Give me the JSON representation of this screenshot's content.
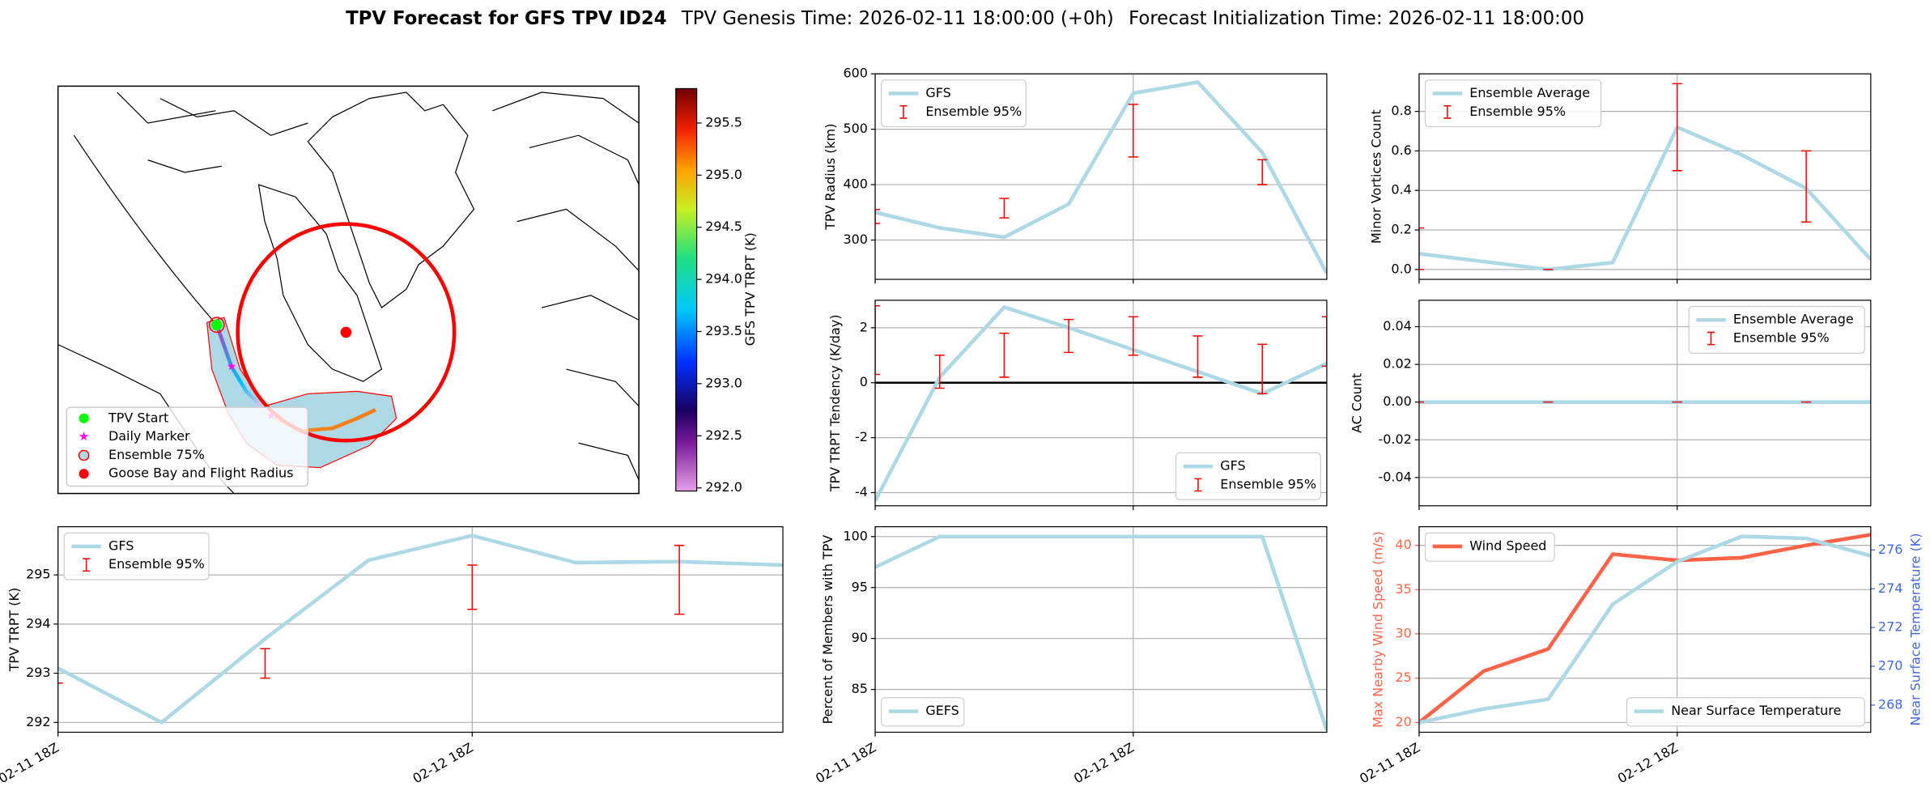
{
  "figure_title": [
    "TPV Forecast for GFS TPV ID24",
    "TPV Genesis Time: 2026-02-11 18:00:00 (+0h)",
    "Forecast Initialization Time: 2026-02-11 18:00:00"
  ],
  "chart_data": [
    {
      "type": "map",
      "legend": [
        {
          "name": "TPV Start",
          "color": "#00ff00"
        },
        {
          "name": "Daily Marker",
          "color": "#ff00ff"
        },
        {
          "name": "Ensemble 75%",
          "color": "#add8e6"
        },
        {
          "name": "Goose Bay and Flight Radius",
          "color": "#ff0000"
        }
      ],
      "colorbar": {
        "label": "GFS TPV TRPT (K)",
        "ylim": [
          291.97,
          295.83
        ],
        "yticks": [
          {
            "value": 292,
            "label": "292.0"
          },
          292.5,
          {
            "value": 293,
            "label": "293.0"
          },
          293.5,
          {
            "value": 294,
            "label": "294.0"
          },
          294.5,
          {
            "value": 295,
            "label": "295.0"
          },
          295.5
        ]
      }
    },
    {
      "type": "line",
      "ylabel": "TPV Radius (km)",
      "x": [
        0,
        6,
        12,
        18,
        24,
        30,
        36,
        42
      ],
      "xlim": [
        0,
        42
      ],
      "xticks": [
        0,
        24
      ],
      "ylim": [
        229,
        600
      ],
      "yticks": [
        300,
        400,
        500,
        600
      ],
      "grid": true,
      "legend": "upper left",
      "series": [
        {
          "name": "GFS",
          "color": "#add8e6",
          "values": [
            350,
            322,
            305,
            365,
            565,
            585,
            458,
            240
          ]
        }
      ],
      "errors": [
        {
          "name": "Ensemble 95%",
          "color": "#ff0000",
          "low": [
            330,
            null,
            340,
            null,
            450,
            null,
            400,
            null
          ],
          "high": [
            355,
            null,
            375,
            null,
            545,
            null,
            445,
            null
          ]
        }
      ]
    },
    {
      "type": "line",
      "ylabel": "Minor Vortices Count",
      "x": [
        0,
        6,
        12,
        18,
        24,
        30,
        36,
        42
      ],
      "xlim": [
        0,
        42
      ],
      "xticks": [
        0,
        24
      ],
      "ylim": [
        -0.05,
        0.99
      ],
      "yticks": [
        {
          "value": 0,
          "label": "0.0"
        },
        0.2,
        0.4,
        0.6,
        0.8
      ],
      "grid": true,
      "legend": "upper left",
      "series": [
        {
          "name": "Ensemble Average",
          "color": "#add8e6",
          "values": [
            0.08,
            0.04,
            0,
            0.035,
            0.72,
            0.58,
            0.41,
            0.05
          ]
        }
      ],
      "errors": [
        {
          "name": "Ensemble 95%",
          "color": "#ff0000",
          "low": [
            0,
            null,
            0,
            null,
            0.5,
            null,
            0.24,
            null
          ],
          "high": [
            0.21,
            null,
            0,
            null,
            0.94,
            null,
            0.6,
            null
          ]
        }
      ]
    },
    {
      "type": "line",
      "ylabel": "TPV TRPT Tendency (K/day)",
      "x": [
        0,
        6,
        12,
        18,
        24,
        30,
        36,
        42
      ],
      "xlim": [
        0,
        42
      ],
      "xticks": [
        0,
        24
      ],
      "ylim": [
        -4.48,
        3.0
      ],
      "yticks": [
        -4,
        -2,
        0,
        2
      ],
      "grid": true,
      "legend": "lower right",
      "hline": 0,
      "series": [
        {
          "name": "GFS",
          "color": "#add8e6",
          "values": [
            -4.3,
            0.2,
            2.75,
            2.0,
            1.2,
            0.4,
            -0.4,
            0.7
          ]
        }
      ],
      "errors": [
        {
          "name": "Ensemble 95%",
          "color": "#ff0000",
          "low": [
            0.3,
            -0.2,
            0.2,
            1.1,
            1.0,
            0.2,
            -0.4,
            0.6
          ],
          "high": [
            2.8,
            1.0,
            1.8,
            2.3,
            2.4,
            1.7,
            1.4,
            2.4
          ]
        }
      ]
    },
    {
      "type": "line",
      "ylabel": "AC Count",
      "x": [
        0,
        6,
        12,
        18,
        24,
        30,
        36,
        42
      ],
      "xlim": [
        0,
        42
      ],
      "xticks": [
        0,
        24
      ],
      "ylim": [
        -0.055,
        0.054
      ],
      "yticks": [
        -0.04,
        -0.02,
        {
          "value": 0,
          "label": "0.00"
        },
        0.02,
        0.04
      ],
      "grid": true,
      "legend": "upper right",
      "series": [
        {
          "name": "Ensemble Average",
          "color": "#add8e6",
          "values": [
            0,
            0,
            0,
            0,
            0,
            0,
            0,
            0
          ]
        }
      ],
      "errors": [
        {
          "name": "Ensemble 95%",
          "color": "#ff0000",
          "low": [
            0,
            null,
            0,
            null,
            0,
            null,
            0,
            null
          ],
          "high": [
            0,
            null,
            0,
            null,
            0,
            null,
            0,
            null
          ]
        }
      ]
    },
    {
      "type": "line",
      "ylabel": "TPV TRPT (K)",
      "x": [
        0,
        6,
        12,
        18,
        24,
        30,
        36,
        42
      ],
      "xlim": [
        0,
        42
      ],
      "xticks": [
        {
          "value": 0,
          "label": "02-11 18Z"
        },
        {
          "value": 24,
          "label": "02-12 18Z"
        }
      ],
      "ylim": [
        291.8,
        295.98
      ],
      "yticks": [
        292,
        293,
        294,
        295
      ],
      "grid": true,
      "legend": "upper left",
      "series": [
        {
          "name": "GFS",
          "color": "#add8e6",
          "values": [
            293.1,
            292.0,
            293.7,
            295.3,
            295.8,
            295.25,
            295.27,
            295.2
          ]
        }
      ],
      "errors": [
        {
          "name": "Ensemble 95%",
          "color": "#ff0000",
          "low": [
            292.8,
            null,
            292.9,
            null,
            294.3,
            null,
            294.2,
            null
          ],
          "high": [
            292.8,
            null,
            293.5,
            null,
            295.2,
            null,
            295.6,
            null
          ]
        }
      ]
    },
    {
      "type": "line",
      "ylabel": "Percent of Members with TPV",
      "x": [
        0,
        6,
        12,
        18,
        24,
        30,
        36,
        42
      ],
      "xlim": [
        0,
        42
      ],
      "xticks": [
        {
          "value": 0,
          "label": "02-11 18Z"
        },
        {
          "value": 24,
          "label": "02-12 18Z"
        }
      ],
      "ylim": [
        80.8,
        100.97
      ],
      "yticks": [
        85,
        90,
        95,
        100
      ],
      "grid": true,
      "legend": "lower left",
      "series": [
        {
          "name": "GEFS",
          "color": "#add8e6",
          "values": [
            97,
            100,
            100,
            100,
            100,
            100,
            100,
            81
          ]
        }
      ]
    },
    {
      "type": "line",
      "ylabel": "Max Nearby Wind Speed (m/s)",
      "ylabel_color": "#ff6347",
      "y2label": "Near Surface Temperature (K)",
      "y2label_color": "#4169e1",
      "x": [
        0,
        6,
        12,
        18,
        24,
        30,
        36,
        42
      ],
      "xlim": [
        0,
        42
      ],
      "xticks": [
        {
          "value": 0,
          "label": "02-11 18Z"
        },
        {
          "value": 24,
          "label": "02-12 18Z"
        }
      ],
      "ylim": [
        18.9,
        42.1
      ],
      "yticks": [
        20,
        25,
        30,
        35,
        40
      ],
      "y2lim": [
        266.6,
        277.2
      ],
      "y2ticks": [
        268,
        270,
        272,
        274,
        276
      ],
      "grid": true,
      "series": [
        {
          "name": "Wind Speed",
          "color": "#ff6347",
          "legend": "upper left",
          "values": [
            20,
            25.8,
            28.3,
            39,
            38.3,
            38.6,
            40,
            41.2
          ]
        },
        {
          "name": "Near Surface Temperature",
          "color": "#add8e6",
          "axis": "y2",
          "legend": "lower right",
          "values": [
            267.1,
            267.8,
            268.3,
            273.2,
            275.4,
            276.7,
            276.6,
            275.7
          ]
        }
      ]
    }
  ]
}
